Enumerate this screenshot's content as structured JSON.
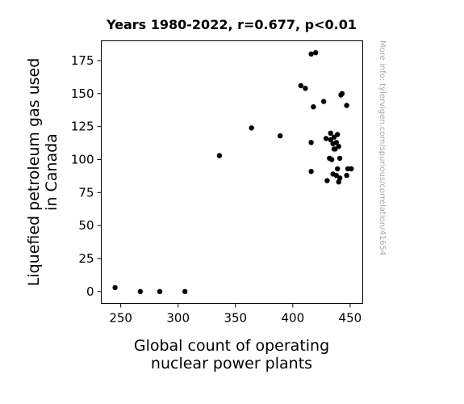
{
  "chart_data": {
    "type": "scatter",
    "title": "Years 1980-2022, r=0.677, p<0.01",
    "xlabel": [
      "Global count of operating",
      "nuclear power plants"
    ],
    "ylabel": [
      "Liquefied petroleum gas used",
      "in Canada"
    ],
    "xlim": [
      233,
      461
    ],
    "ylim": [
      -9,
      190
    ],
    "xticks": [
      250,
      300,
      350,
      400,
      450
    ],
    "yticks": [
      0,
      25,
      50,
      75,
      100,
      125,
      150,
      175
    ],
    "grid": false,
    "point_color": "#000000",
    "points": [
      [
        245,
        3
      ],
      [
        267,
        0
      ],
      [
        284,
        0
      ],
      [
        306,
        0
      ],
      [
        336,
        103
      ],
      [
        364,
        124
      ],
      [
        389,
        118
      ],
      [
        407,
        156
      ],
      [
        411,
        154
      ],
      [
        416,
        180
      ],
      [
        420,
        181
      ],
      [
        418,
        140
      ],
      [
        427,
        144
      ],
      [
        442,
        149
      ],
      [
        443,
        150
      ],
      [
        447,
        141
      ],
      [
        416,
        113
      ],
      [
        429,
        116
      ],
      [
        433,
        120
      ],
      [
        433,
        115
      ],
      [
        435,
        112
      ],
      [
        436,
        117
      ],
      [
        438,
        113
      ],
      [
        439,
        119
      ],
      [
        440,
        110
      ],
      [
        436,
        108
      ],
      [
        437,
        108
      ],
      [
        432,
        101
      ],
      [
        434,
        100
      ],
      [
        441,
        101
      ],
      [
        439,
        93
      ],
      [
        416,
        91
      ],
      [
        435,
        89
      ],
      [
        438,
        88
      ],
      [
        441,
        86
      ],
      [
        430,
        84
      ],
      [
        440,
        83
      ],
      [
        447,
        88
      ],
      [
        448,
        93
      ],
      [
        451,
        93
      ]
    ]
  },
  "watermark": "More info: tylervigen.com/spurious/correlation/41654"
}
